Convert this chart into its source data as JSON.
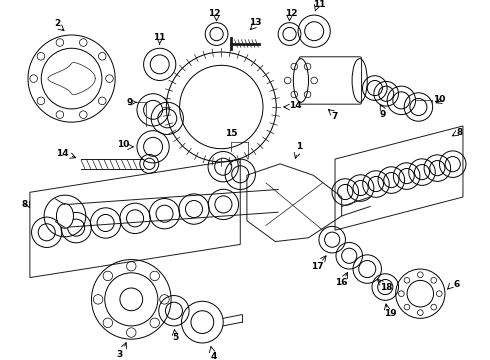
{
  "bg_color": "#ffffff",
  "line_color": "#1a1a1a",
  "figsize": [
    4.9,
    3.6
  ],
  "dpi": 100,
  "lw": 0.7
}
